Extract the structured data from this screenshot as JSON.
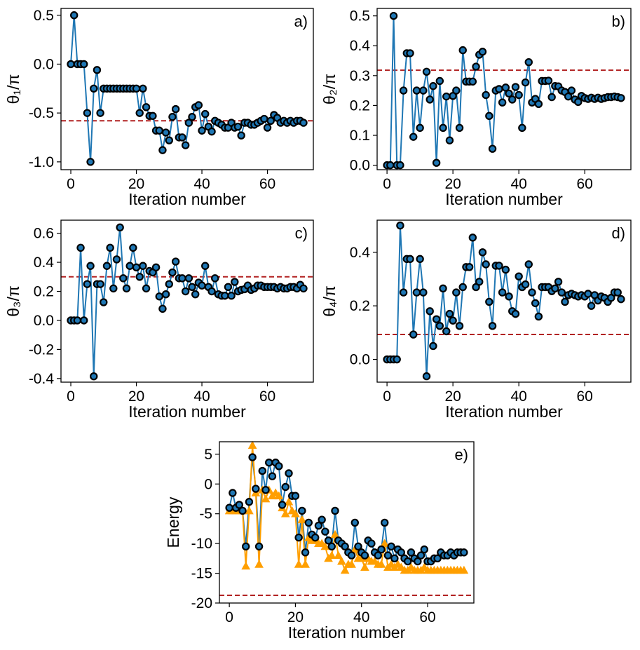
{
  "figure": {
    "line_color": "#1f77b4",
    "marker_edge_color": "#000000",
    "hline_color": "#b22222",
    "energy_secondary_color": "#ff9f00"
  },
  "chart_data": [
    {
      "type": "line",
      "panel": "a)",
      "title": "",
      "xlabel": "Iteration number",
      "ylabel": "θ₁/π",
      "xlim": [
        -3,
        74
      ],
      "ylim": [
        -1.08,
        0.57
      ],
      "xticks": [
        0,
        20,
        40,
        60
      ],
      "yticks": [
        0.5,
        0.0,
        -0.5,
        -1.0
      ],
      "ytick_labels": [
        "0.5",
        "0.0",
        "-0.5",
        "-1.0"
      ],
      "hline": -0.58,
      "series": [
        {
          "name": "θ₁/π",
          "x_start": 0,
          "values": [
            0,
            0.5,
            0,
            0,
            0,
            -0.5,
            -1.0,
            -0.25,
            -0.06,
            -0.5,
            -0.25,
            -0.25,
            -0.25,
            -0.25,
            -0.25,
            -0.25,
            -0.25,
            -0.25,
            -0.25,
            -0.25,
            -0.25,
            -0.5,
            -0.25,
            -0.44,
            -0.53,
            -0.53,
            -0.68,
            -0.68,
            -0.88,
            -0.7,
            -0.78,
            -0.54,
            -0.46,
            -0.75,
            -0.75,
            -0.83,
            -0.6,
            -0.54,
            -0.44,
            -0.42,
            -0.68,
            -0.51,
            -0.64,
            -0.69,
            -0.58,
            -0.6,
            -0.62,
            -0.65,
            -0.65,
            -0.6,
            -0.65,
            -0.64,
            -0.73,
            -0.6,
            -0.6,
            -0.62,
            -0.62,
            -0.6,
            -0.58,
            -0.56,
            -0.65,
            -0.58,
            -0.52,
            -0.55,
            -0.6,
            -0.58,
            -0.6,
            -0.58,
            -0.6,
            -0.58,
            -0.58,
            -0.6
          ]
        }
      ]
    },
    {
      "type": "line",
      "panel": "b)",
      "title": "",
      "xlabel": "Iteration number",
      "ylabel": "θ₂/π",
      "xlim": [
        -3,
        74
      ],
      "ylim": [
        -0.015,
        0.525
      ],
      "xticks": [
        0,
        20,
        40,
        60
      ],
      "yticks": [
        0.0,
        0.1,
        0.2,
        0.3,
        0.4,
        0.5
      ],
      "ytick_labels": [
        "0.0",
        "0.1",
        "0.2",
        "0.3",
        "0.4",
        "0.5"
      ],
      "hline": 0.318,
      "series": [
        {
          "name": "θ₂/π",
          "x_start": 0,
          "values": [
            0,
            0,
            0.5,
            0,
            0,
            0.25,
            0.375,
            0.375,
            0.095,
            0.25,
            0.125,
            0.25,
            0.313,
            0.22,
            0.265,
            0.008,
            0.282,
            0.125,
            0.23,
            0.083,
            0.232,
            0.25,
            0.125,
            0.385,
            0.28,
            0.28,
            0.28,
            0.33,
            0.37,
            0.38,
            0.235,
            0.165,
            0.055,
            0.25,
            0.255,
            0.21,
            0.26,
            0.24,
            0.22,
            0.262,
            0.235,
            0.125,
            0.277,
            0.345,
            0.21,
            0.222,
            0.205,
            0.282,
            0.282,
            0.283,
            0.228,
            0.265,
            0.264,
            0.25,
            0.245,
            0.23,
            0.25,
            0.22,
            0.212,
            0.232,
            0.225,
            0.222,
            0.226,
            0.222,
            0.226,
            0.222,
            0.225,
            0.228,
            0.228,
            0.23,
            0.228,
            0.225
          ]
        }
      ]
    },
    {
      "type": "line",
      "panel": "c)",
      "title": "",
      "xlabel": "Iteration number",
      "ylabel": "θ₃/π",
      "xlim": [
        -3,
        74
      ],
      "ylim": [
        -0.425,
        0.69
      ],
      "xticks": [
        0,
        20,
        40,
        60
      ],
      "yticks": [
        0.6,
        0.4,
        0.2,
        0.0,
        -0.2,
        -0.4
      ],
      "ytick_labels": [
        "0.6",
        "0.4",
        "0.2",
        "0.0",
        "-0.2",
        "-0.4"
      ],
      "hline": 0.3,
      "series": [
        {
          "name": "θ₃/π",
          "x_start": 0,
          "values": [
            0,
            0,
            0,
            0.5,
            0,
            0.25,
            0.375,
            -0.385,
            0.25,
            0.25,
            0.125,
            0.375,
            0.5,
            0.22,
            0.42,
            0.64,
            0.29,
            0.22,
            0.375,
            0.5,
            0.365,
            0.3,
            0.375,
            0.22,
            0.34,
            0.33,
            0.365,
            0.165,
            0.08,
            0.18,
            0.25,
            0.33,
            0.405,
            0.29,
            0.29,
            0.2,
            0.29,
            0.23,
            0.18,
            0.26,
            0.24,
            0.375,
            0.23,
            0.2,
            0.29,
            0.18,
            0.17,
            0.17,
            0.23,
            0.17,
            0.265,
            0.2,
            0.21,
            0.215,
            0.24,
            0.21,
            0.22,
            0.24,
            0.24,
            0.23,
            0.23,
            0.23,
            0.23,
            0.22,
            0.23,
            0.22,
            0.22,
            0.23,
            0.23,
            0.22,
            0.245,
            0.22
          ]
        }
      ]
    },
    {
      "type": "line",
      "panel": "d)",
      "title": "",
      "xlabel": "Iteration number",
      "ylabel": "θ₄/π",
      "xlim": [
        -3,
        74
      ],
      "ylim": [
        -0.085,
        0.52
      ],
      "xticks": [
        0,
        20,
        40,
        60
      ],
      "yticks": [
        0.4,
        0.2,
        0.0
      ],
      "ytick_labels": [
        "0.4",
        "0.2",
        "0.0"
      ],
      "hline": 0.093,
      "series": [
        {
          "name": "θ₄/π",
          "x_start": 0,
          "values": [
            0,
            0,
            0,
            0,
            0.5,
            0.25,
            0.375,
            0.375,
            0.093,
            0.25,
            0.375,
            0.25,
            -0.063,
            0.18,
            0.05,
            0.15,
            0.125,
            0.265,
            0.105,
            0.17,
            0.145,
            0.25,
            0.125,
            0.27,
            0.345,
            0.345,
            0.455,
            0.27,
            0.29,
            0.4,
            0.355,
            0.215,
            0.125,
            0.35,
            0.35,
            0.25,
            0.335,
            0.235,
            0.18,
            0.17,
            0.31,
            0.27,
            0.28,
            0.355,
            0.25,
            0.21,
            0.16,
            0.27,
            0.27,
            0.27,
            0.255,
            0.265,
            0.29,
            0.25,
            0.215,
            0.24,
            0.245,
            0.24,
            0.235,
            0.24,
            0.235,
            0.245,
            0.2,
            0.24,
            0.22,
            0.235,
            0.23,
            0.215,
            0.23,
            0.25,
            0.25,
            0.225
          ]
        }
      ]
    },
    {
      "type": "line",
      "panel": "e)",
      "title": "",
      "xlabel": "Iteration number",
      "ylabel": "Energy",
      "xlim": [
        -3,
        74
      ],
      "ylim": [
        -20,
        7.1
      ],
      "xticks": [
        0,
        20,
        40,
        60
      ],
      "yticks": [
        5,
        0,
        -5,
        -10,
        -15,
        -20
      ],
      "ytick_labels": [
        "5",
        "0",
        "-5",
        "-10",
        "-15",
        "-20"
      ],
      "hline": -18.7,
      "series": [
        {
          "name": "energy (circles)",
          "x_start": 0,
          "values": [
            -4.0,
            -1.5,
            -4.0,
            -3.5,
            -4.5,
            -10.5,
            -3.0,
            4.5,
            -0.8,
            -10.5,
            2.2,
            -1.0,
            3.6,
            1.3,
            3.6,
            3.0,
            -3.5,
            -0.5,
            1.8,
            -2.0,
            -2.0,
            -9.0,
            -4.5,
            -11.5,
            -6.5,
            -8.5,
            -9.0,
            -7.0,
            -6.0,
            -8.0,
            -9.5,
            -10.5,
            -4.5,
            -9.5,
            -10.0,
            -10.5,
            -11.5,
            -12.0,
            -6.5,
            -10.5,
            -11.5,
            -12.0,
            -9.5,
            -10.0,
            -11.5,
            -12.0,
            -11.0,
            -6.5,
            -12.0,
            -10.5,
            -12.5,
            -11.0,
            -11.5,
            -12.5,
            -13.0,
            -11.5,
            -12.5,
            -13.0,
            -12.0,
            -11.0,
            -13.0,
            -13.0,
            -12.5,
            -12.5,
            -11.5,
            -12.0,
            -12.0,
            -11.5,
            -12.0,
            -11.5,
            -11.5,
            -11.5
          ]
        },
        {
          "name": "energy (triangles)",
          "x_start": 0,
          "values": [
            -4.5,
            -4.5,
            -4.5,
            -4.5,
            -4.5,
            -13.8,
            -4.5,
            6.5,
            -1.5,
            -13.5,
            -1.0,
            -2.5,
            -1.0,
            -2.0,
            -1.5,
            -2.0,
            -4.0,
            -5.0,
            -3.0,
            -4.5,
            -5.0,
            -13.5,
            -6.0,
            -13.5,
            -9.0,
            -9.5,
            -9.5,
            -10.0,
            -10.0,
            -10.5,
            -12.5,
            -12.0,
            -8.5,
            -12.0,
            -13.0,
            -14.5,
            -13.5,
            -13.5,
            -11.0,
            -12.5,
            -12.5,
            -14.0,
            -12.5,
            -13.0,
            -13.0,
            -13.5,
            -13.5,
            -10.0,
            -14.0,
            -13.5,
            -14.0,
            -13.5,
            -14.0,
            -14.5,
            -14.5,
            -14.0,
            -14.5,
            -14.5,
            -14.5,
            -14.0,
            -14.5,
            -14.5,
            -14.5,
            -14.5,
            -14.5,
            -14.5,
            -14.5,
            -14.5,
            -14.5,
            -14.5,
            -14.5,
            -14.5
          ]
        }
      ]
    }
  ]
}
